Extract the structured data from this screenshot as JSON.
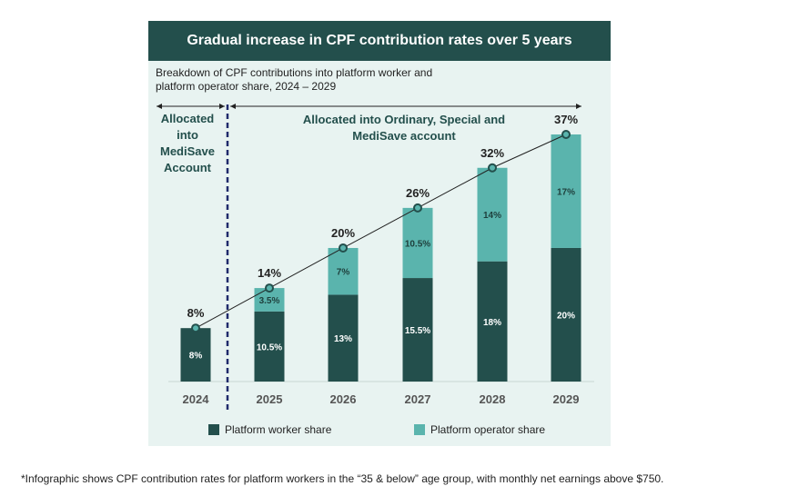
{
  "chart_data": {
    "type": "bar",
    "stacked": true,
    "title": "Gradual increase in CPF contribution rates over 5 years",
    "subtitle": "Breakdown of CPF contributions into platform worker and platform operator share, 2024 – 2029",
    "categories": [
      "2024",
      "2025",
      "2026",
      "2027",
      "2028",
      "2029"
    ],
    "series": [
      {
        "name": "Platform worker share",
        "values": [
          8,
          10.5,
          13,
          15.5,
          18,
          20
        ],
        "labels": [
          "8%",
          "10.5%",
          "13%",
          "15.5%",
          "18%",
          "20%"
        ],
        "color": "#234f4c"
      },
      {
        "name": "Platform operator share",
        "values": [
          0,
          3.5,
          7,
          10.5,
          14,
          17
        ],
        "labels": [
          "",
          "3.5%",
          "7%",
          "10.5%",
          "14%",
          "17%"
        ],
        "color": "#5ab4ad"
      }
    ],
    "totals": [
      8,
      14,
      20,
      26,
      32,
      37
    ],
    "total_labels": [
      "8%",
      "14%",
      "20%",
      "26%",
      "32%",
      "37%"
    ],
    "ylim": [
      0,
      37
    ],
    "trend_line": true,
    "annotations": {
      "left": [
        "Allocated",
        "into",
        "MediSave",
        "Account"
      ],
      "right": [
        "Allocated into Ordinary, Special and",
        "MediSave account"
      ]
    },
    "legend_position": "bottom"
  },
  "colors": {
    "banner": "#234f4c",
    "background": "#e8f3f1",
    "worker": "#234f4c",
    "operator": "#5ab4ad",
    "divider": "#1f2a6b"
  },
  "footnote": "*Infographic shows CPF contribution rates for platform workers in the “35 & below” age group, with monthly net earnings above $750."
}
